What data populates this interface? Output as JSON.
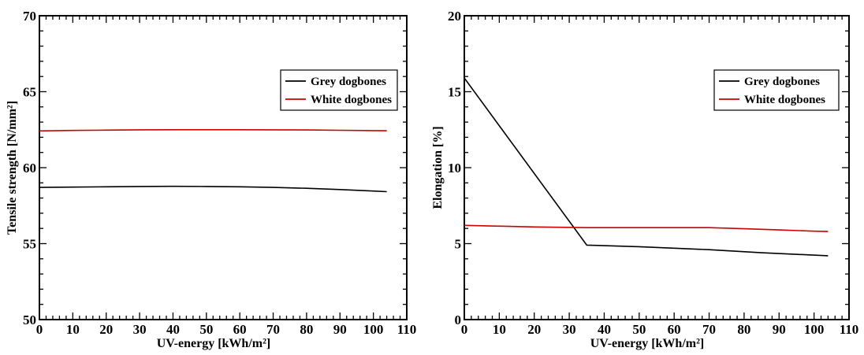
{
  "chart_data": [
    {
      "type": "line",
      "xlabel": "UV-energy [kWh/m²]",
      "ylabel": "Tensile strength [N/mm²]",
      "xlim": [
        0,
        110
      ],
      "ylim": [
        50,
        70
      ],
      "x_ticks": [
        "0",
        "10",
        "20",
        "30",
        "40",
        "50",
        "60",
        "70",
        "80",
        "90",
        "100",
        "110"
      ],
      "y_ticks": [
        "50",
        "55",
        "60",
        "65",
        "70"
      ],
      "grid": false,
      "legend_position": "right",
      "series": [
        {
          "name": "Grey dogbones",
          "color": "#000000",
          "x": [
            0,
            10,
            20,
            30,
            40,
            50,
            60,
            70,
            80,
            90,
            100,
            104
          ],
          "y": [
            58.7,
            58.72,
            58.74,
            58.76,
            58.77,
            58.76,
            58.74,
            58.7,
            58.64,
            58.56,
            58.46,
            58.42
          ]
        },
        {
          "name": "White dogbones",
          "color": "#cc0000",
          "x": [
            0,
            10,
            20,
            30,
            40,
            50,
            60,
            70,
            80,
            90,
            100,
            104
          ],
          "y": [
            62.42,
            62.45,
            62.47,
            62.49,
            62.5,
            62.5,
            62.5,
            62.49,
            62.48,
            62.46,
            62.44,
            62.43
          ]
        }
      ]
    },
    {
      "type": "line",
      "xlabel": "UV-energy [kWh/m²]",
      "ylabel": "Elongation [%]",
      "xlim": [
        0,
        110
      ],
      "ylim": [
        0,
        20
      ],
      "x_ticks": [
        "0",
        "10",
        "20",
        "30",
        "40",
        "50",
        "60",
        "70",
        "80",
        "90",
        "100",
        "110"
      ],
      "y_ticks": [
        "0",
        "5",
        "10",
        "15",
        "20"
      ],
      "grid": false,
      "legend_position": "right",
      "series": [
        {
          "name": "Grey dogbones",
          "color": "#000000",
          "x": [
            0,
            35,
            50,
            70,
            85,
            104
          ],
          "y": [
            15.9,
            4.9,
            4.8,
            4.6,
            4.4,
            4.2
          ]
        },
        {
          "name": "White dogbones",
          "color": "#cc0000",
          "x": [
            0,
            10,
            20,
            35,
            50,
            70,
            80,
            90,
            100,
            104
          ],
          "y": [
            6.2,
            6.15,
            6.1,
            6.05,
            6.05,
            6.05,
            5.98,
            5.9,
            5.82,
            5.8
          ]
        }
      ]
    }
  ]
}
